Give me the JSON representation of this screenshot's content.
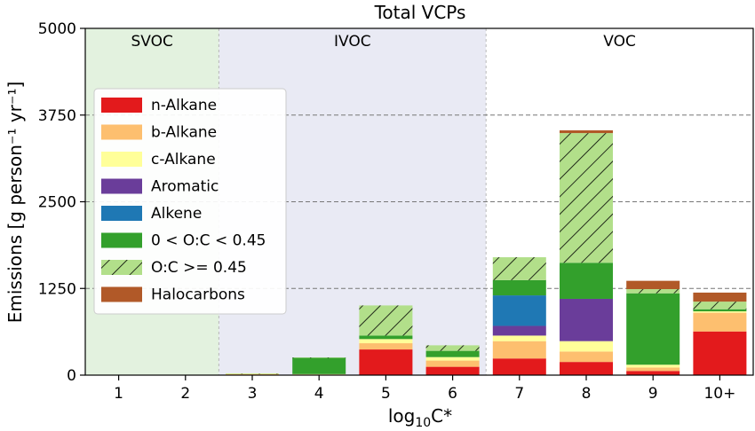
{
  "chart_data": {
    "type": "bar",
    "stacked": true,
    "title": "Total VCPs",
    "ylabel": "Emissions [g person⁻¹ yr⁻¹]",
    "xlabel_main": "log",
    "xlabel_sub": "10",
    "xlabel_tail": "C*",
    "ylim": [
      0,
      5000
    ],
    "yticks": [
      "0",
      "1250",
      "2500",
      "3750",
      "5000"
    ],
    "ytick_values": [
      0,
      1250,
      2500,
      3750,
      5000
    ],
    "dashed_gridlines_at": [
      1250,
      2500,
      3750
    ],
    "categories": [
      "1",
      "2",
      "3",
      "4",
      "5",
      "6",
      "7",
      "8",
      "9",
      "10+"
    ],
    "regions": [
      {
        "label": "SVOC",
        "from_category": "1",
        "to_category": "2",
        "color": "#e3f2df"
      },
      {
        "label": "IVOC",
        "from_category": "3",
        "to_category": "6",
        "color": "#e9eaf4"
      },
      {
        "label": "VOC",
        "from_category": "7",
        "to_category": "10+",
        "color": "#ffffff"
      }
    ],
    "series": [
      {
        "name": "n-Alkane",
        "color": "#e31a1c",
        "hatch": false,
        "values": [
          0,
          0,
          5,
          5,
          370,
          120,
          240,
          190,
          60,
          630
        ]
      },
      {
        "name": "b-Alkane",
        "color": "#fdbf6f",
        "hatch": false,
        "values": [
          0,
          0,
          8,
          5,
          90,
          90,
          250,
          150,
          50,
          270
        ]
      },
      {
        "name": "c-Alkane",
        "color": "#ffff99",
        "hatch": false,
        "values": [
          0,
          0,
          7,
          5,
          60,
          50,
          80,
          150,
          40,
          20
        ]
      },
      {
        "name": "Aromatic",
        "color": "#6a3d9a",
        "hatch": false,
        "values": [
          0,
          0,
          0,
          0,
          0,
          0,
          140,
          610,
          0,
          0
        ]
      },
      {
        "name": "Alkene",
        "color": "#1f78b4",
        "hatch": false,
        "values": [
          0,
          0,
          0,
          0,
          0,
          0,
          440,
          0,
          0,
          0
        ]
      },
      {
        "name": "0 < O:C < 0.45",
        "color": "#33a02c",
        "hatch": false,
        "values": [
          0,
          0,
          0,
          235,
          50,
          90,
          220,
          520,
          1030,
          30
        ]
      },
      {
        "name": "O:C >= 0.45",
        "color": "#b2df8a",
        "hatch": true,
        "values": [
          0,
          0,
          5,
          5,
          435,
          80,
          330,
          1870,
          60,
          110
        ]
      },
      {
        "name": "Halocarbons",
        "color": "#b15928",
        "hatch": false,
        "values": [
          0,
          0,
          0,
          0,
          0,
          0,
          0,
          40,
          120,
          130
        ]
      }
    ],
    "legend_position": "center-left",
    "grid": "horizontal dashed"
  }
}
